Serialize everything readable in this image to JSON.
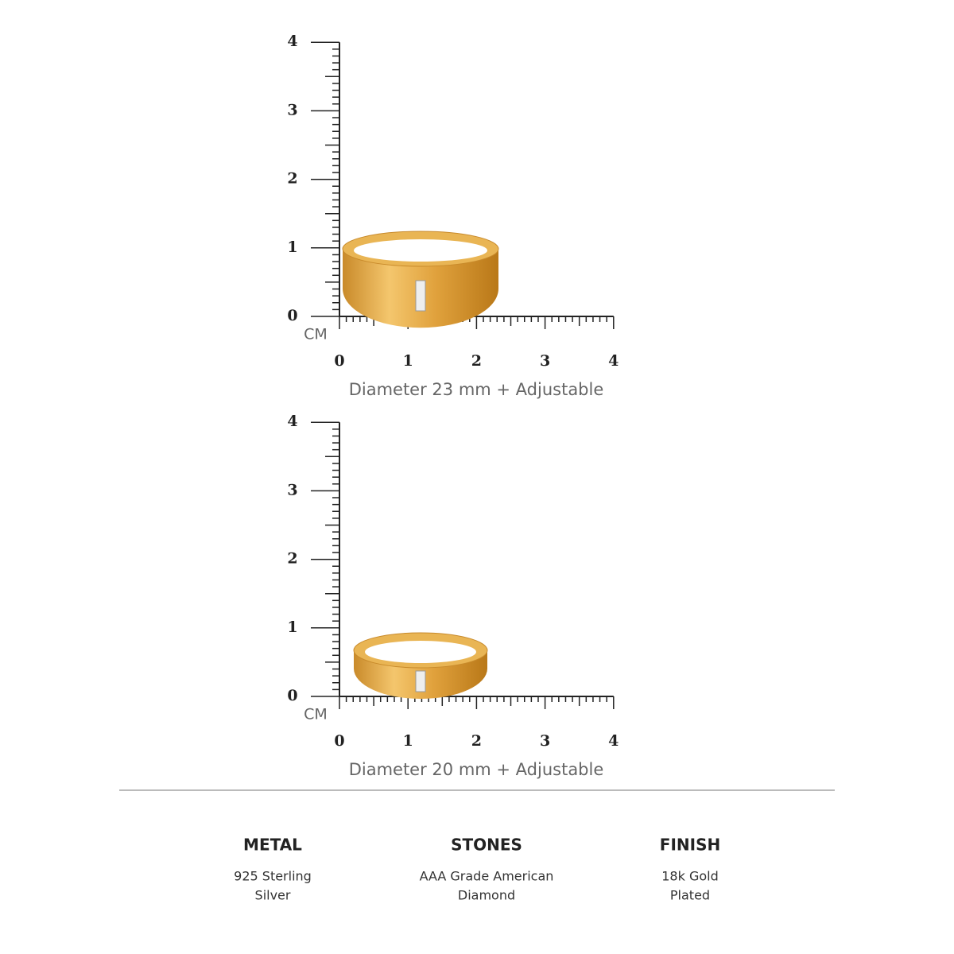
{
  "rulers": [
    {
      "y_labels": [
        "0",
        "1",
        "2",
        "3",
        "4"
      ],
      "x_labels": [
        "0",
        "1",
        "2",
        "3",
        "4"
      ],
      "unit": "CM",
      "caption": "Diameter 23 mm + Adjustable"
    },
    {
      "y_labels": [
        "0",
        "1",
        "2",
        "3",
        "4"
      ],
      "x_labels": [
        "0",
        "1",
        "2",
        "3",
        "4"
      ],
      "unit": "CM",
      "caption": "Diameter 20 mm + Adjustable"
    }
  ],
  "specs": [
    {
      "title": "METAL",
      "lines": [
        "925 Sterling",
        "Silver"
      ]
    },
    {
      "title": "STONES",
      "lines": [
        "AAA Grade American",
        "Diamond"
      ]
    },
    {
      "title": "FINISH",
      "lines": [
        "18k Gold",
        "Plated"
      ]
    }
  ]
}
